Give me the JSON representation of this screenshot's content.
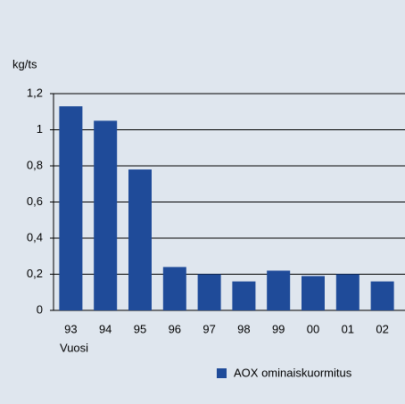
{
  "chart_data": {
    "type": "bar",
    "y_label": "kg/ts",
    "x_label": "Vuosi",
    "categories": [
      "93",
      "94",
      "95",
      "96",
      "97",
      "98",
      "99",
      "00",
      "01",
      "02"
    ],
    "series": [
      {
        "name": "AOX ominaiskuormitus",
        "color": "#1f4b99",
        "values": [
          1.13,
          1.05,
          0.78,
          0.24,
          0.2,
          0.16,
          0.22,
          0.19,
          0.2,
          0.16
        ]
      }
    ],
    "ylim": [
      0,
      1.2
    ],
    "yticks": [
      0,
      {
        "value": 0.2,
        "label": "0,2"
      },
      {
        "value": 0.4,
        "label": "0,4"
      },
      {
        "value": 0.6,
        "label": "0,6"
      },
      {
        "value": 0.8,
        "label": "0,8"
      },
      1,
      {
        "value": 1.2,
        "label": "1,2"
      }
    ],
    "grid": true,
    "legend": "bottom-right"
  }
}
